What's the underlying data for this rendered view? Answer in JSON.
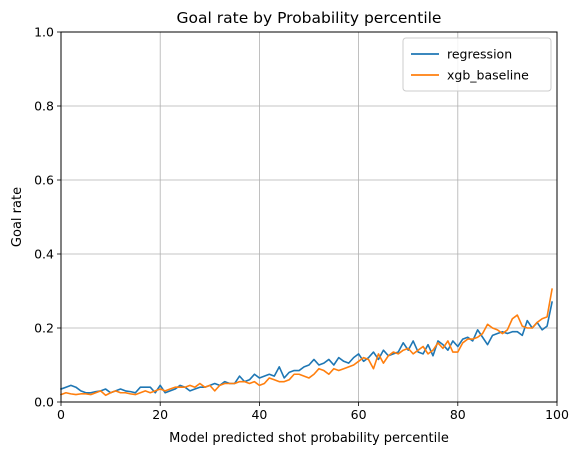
{
  "chart_data": {
    "type": "line",
    "title": "Goal rate by Probability percentile",
    "xlabel": "Model predicted shot probability percentile",
    "ylabel": "Goal rate",
    "xlim": [
      0,
      100
    ],
    "ylim": [
      0,
      1.0
    ],
    "xticks": [
      "0",
      "20",
      "40",
      "60",
      "80",
      "100"
    ],
    "yticks": [
      "0.0",
      "0.2",
      "0.4",
      "0.6",
      "0.8",
      "1.0"
    ],
    "grid": true,
    "legend_position": "top-right",
    "series": [
      {
        "name": "regression",
        "color": "#1f77b4",
        "x": [
          0,
          1,
          2,
          3,
          4,
          5,
          6,
          7,
          8,
          9,
          10,
          11,
          12,
          13,
          14,
          15,
          16,
          17,
          18,
          19,
          20,
          21,
          22,
          23,
          24,
          25,
          26,
          27,
          28,
          29,
          30,
          31,
          32,
          33,
          34,
          35,
          36,
          37,
          38,
          39,
          40,
          41,
          42,
          43,
          44,
          45,
          46,
          47,
          48,
          49,
          50,
          51,
          52,
          53,
          54,
          55,
          56,
          57,
          58,
          59,
          60,
          61,
          62,
          63,
          64,
          65,
          66,
          67,
          68,
          69,
          70,
          71,
          72,
          73,
          74,
          75,
          76,
          77,
          78,
          79,
          80,
          81,
          82,
          83,
          84,
          85,
          86,
          87,
          88,
          89,
          90,
          91,
          92,
          93,
          94,
          95,
          96,
          97,
          98,
          99
        ],
        "values": [
          0.035,
          0.04,
          0.045,
          0.04,
          0.03,
          0.025,
          0.025,
          0.028,
          0.03,
          0.035,
          0.025,
          0.03,
          0.035,
          0.03,
          0.028,
          0.025,
          0.04,
          0.04,
          0.04,
          0.025,
          0.045,
          0.025,
          0.03,
          0.035,
          0.045,
          0.04,
          0.03,
          0.035,
          0.04,
          0.04,
          0.045,
          0.05,
          0.045,
          0.055,
          0.05,
          0.05,
          0.07,
          0.055,
          0.06,
          0.075,
          0.065,
          0.07,
          0.075,
          0.07,
          0.095,
          0.065,
          0.08,
          0.085,
          0.085,
          0.095,
          0.1,
          0.115,
          0.1,
          0.105,
          0.115,
          0.1,
          0.12,
          0.11,
          0.105,
          0.12,
          0.13,
          0.11,
          0.12,
          0.135,
          0.115,
          0.14,
          0.125,
          0.13,
          0.135,
          0.16,
          0.14,
          0.165,
          0.135,
          0.13,
          0.155,
          0.125,
          0.165,
          0.155,
          0.14,
          0.165,
          0.15,
          0.17,
          0.175,
          0.165,
          0.195,
          0.175,
          0.155,
          0.18,
          0.185,
          0.19,
          0.185,
          0.19,
          0.19,
          0.18,
          0.22,
          0.2,
          0.215,
          0.195,
          0.205,
          0.27
        ]
      },
      {
        "name": "xgb_baseline",
        "color": "#ff7f0e",
        "x": [
          0,
          1,
          2,
          3,
          4,
          5,
          6,
          7,
          8,
          9,
          10,
          11,
          12,
          13,
          14,
          15,
          16,
          17,
          18,
          19,
          20,
          21,
          22,
          23,
          24,
          25,
          26,
          27,
          28,
          29,
          30,
          31,
          32,
          33,
          34,
          35,
          36,
          37,
          38,
          39,
          40,
          41,
          42,
          43,
          44,
          45,
          46,
          47,
          48,
          49,
          50,
          51,
          52,
          53,
          54,
          55,
          56,
          57,
          58,
          59,
          60,
          61,
          62,
          63,
          64,
          65,
          66,
          67,
          68,
          69,
          70,
          71,
          72,
          73,
          74,
          75,
          76,
          77,
          78,
          79,
          80,
          81,
          82,
          83,
          84,
          85,
          86,
          87,
          88,
          89,
          90,
          91,
          92,
          93,
          94,
          95,
          96,
          97,
          98,
          99
        ],
        "values": [
          0.02,
          0.025,
          0.022,
          0.02,
          0.022,
          0.022,
          0.02,
          0.025,
          0.03,
          0.018,
          0.025,
          0.03,
          0.025,
          0.025,
          0.022,
          0.02,
          0.025,
          0.03,
          0.025,
          0.03,
          0.035,
          0.03,
          0.035,
          0.04,
          0.04,
          0.04,
          0.045,
          0.04,
          0.05,
          0.04,
          0.045,
          0.03,
          0.045,
          0.05,
          0.05,
          0.05,
          0.055,
          0.055,
          0.05,
          0.055,
          0.045,
          0.05,
          0.065,
          0.06,
          0.055,
          0.055,
          0.06,
          0.075,
          0.075,
          0.07,
          0.065,
          0.075,
          0.09,
          0.085,
          0.075,
          0.09,
          0.085,
          0.09,
          0.095,
          0.1,
          0.11,
          0.12,
          0.115,
          0.09,
          0.13,
          0.105,
          0.125,
          0.135,
          0.13,
          0.14,
          0.145,
          0.13,
          0.14,
          0.15,
          0.13,
          0.14,
          0.16,
          0.145,
          0.165,
          0.135,
          0.135,
          0.16,
          0.17,
          0.17,
          0.175,
          0.185,
          0.21,
          0.2,
          0.195,
          0.185,
          0.195,
          0.225,
          0.235,
          0.205,
          0.2,
          0.2,
          0.215,
          0.225,
          0.23,
          0.305
        ]
      }
    ]
  }
}
